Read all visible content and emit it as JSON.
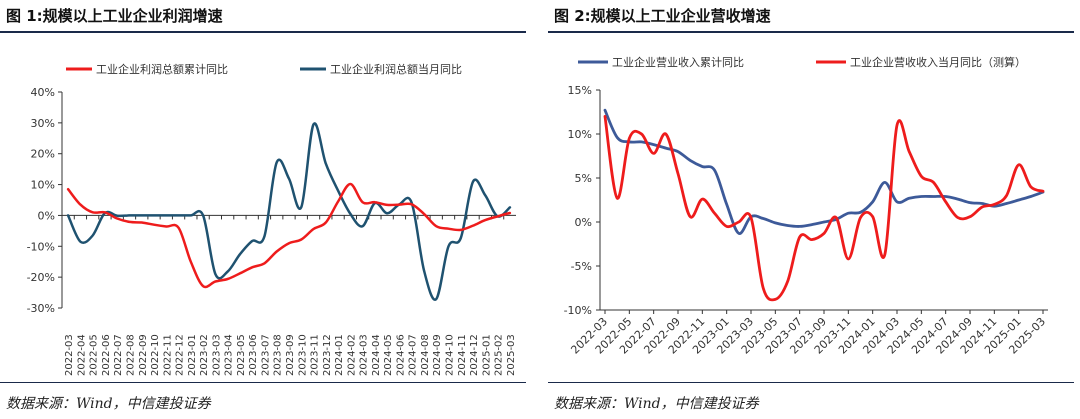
{
  "figures": [
    {
      "title": "图 1:规模以上工业企业利润增速",
      "source": "数据来源：Wind，中信建投证券"
    },
    {
      "title": "图 2:规模以上工业企业营收增速",
      "source": "数据来源：Wind，中信建投证券"
    }
  ],
  "chart_data": [
    {
      "type": "line",
      "title": "规模以上工业企业利润增速",
      "categories": [
        "2022-03",
        "2022-04",
        "2022-05",
        "2022-06",
        "2022-07",
        "2022-08",
        "2022-09",
        "2022-10",
        "2022-11",
        "2022-12",
        "2023-01",
        "2023-02",
        "2023-03",
        "2023-04",
        "2023-05",
        "2023-06",
        "2023-07",
        "2023-08",
        "2023-09",
        "2023-10",
        "2023-11",
        "2023-12",
        "2024-01",
        "2024-02",
        "2024-03",
        "2024-04",
        "2024-05",
        "2024-06",
        "2024-07",
        "2024-08",
        "2024-09",
        "2024-10",
        "2024-11",
        "2024-12",
        "2025-01",
        "2025-02",
        "2025-03"
      ],
      "yticks": [
        -30,
        -20,
        -10,
        0,
        10,
        20,
        30,
        40
      ],
      "ytick_labels": [
        "-30%",
        "-20%",
        "-10%",
        "0%",
        "10%",
        "20%",
        "30%",
        "40%"
      ],
      "ylim": [
        -30,
        40
      ],
      "series": [
        {
          "name": "工业企业利润总额累计同比",
          "color": "#ee1c1c",
          "values": [
            8.5,
            3.5,
            1.0,
            1.0,
            -1.0,
            -2.1,
            -2.3,
            -3.0,
            -3.6,
            -4.0,
            -15,
            -22.9,
            -21.4,
            -20.6,
            -18.8,
            -16.8,
            -15.5,
            -11.7,
            -9.0,
            -7.8,
            -4.4,
            -2.3,
            4.5,
            10.2,
            4.3,
            4.3,
            3.4,
            3.5,
            3.6,
            0.5,
            -3.5,
            -4.3,
            -4.7,
            -3.3,
            -1.5,
            -0.3,
            0.8
          ]
        },
        {
          "name": "工业企业利润总额当月同比",
          "color": "#1f5270",
          "values": [
            0,
            -8.5,
            -6.5,
            0.8,
            -0.1,
            0,
            0,
            0,
            0,
            0,
            0,
            0,
            -19,
            -18.2,
            -12.6,
            -8.3,
            -6.7,
            17.2,
            11.9,
            2.7,
            29.5,
            16.8,
            8,
            0.5,
            -3.5,
            4.0,
            0.7,
            3.6,
            4.1,
            -17.8,
            -27.1,
            -10.0,
            -7.3,
            11.0,
            6.5,
            -0.3,
            2.6
          ]
        }
      ]
    },
    {
      "type": "line",
      "title": "规模以上工业企业营收增速",
      "categories": [
        "2022-03",
        "2022-04",
        "2022-05",
        "2022-06",
        "2022-07",
        "2022-08",
        "2022-09",
        "2022-10",
        "2022-11",
        "2022-12",
        "2023-01",
        "2023-02",
        "2023-03",
        "2023-04",
        "2023-05",
        "2023-06",
        "2023-07",
        "2023-08",
        "2023-09",
        "2023-10",
        "2023-11",
        "2023-12",
        "2024-01",
        "2024-02",
        "2024-03",
        "2024-04",
        "2024-05",
        "2024-06",
        "2024-07",
        "2024-08",
        "2024-09",
        "2024-10",
        "2024-11",
        "2024-12",
        "2025-01",
        "2025-02",
        "2025-03"
      ],
      "xtick_labels": [
        "2022-03",
        "2022-05",
        "2022-07",
        "2022-09",
        "2022-11",
        "2023-01",
        "2023-03",
        "2023-05",
        "2023-07",
        "2023-09",
        "2023-11",
        "2024-01",
        "2024-03",
        "2024-05",
        "2024-07",
        "2024-09",
        "2024-11",
        "2025-01",
        "2025-03"
      ],
      "yticks": [
        -10,
        -5,
        0,
        5,
        10,
        15
      ],
      "ytick_labels": [
        "-10%",
        "-5%",
        "0%",
        "5%",
        "10%",
        "15%"
      ],
      "ylim": [
        -10,
        15
      ],
      "series": [
        {
          "name": "工业企业营业收入累计同比",
          "color": "#3d5a99",
          "values": [
            12.7,
            9.6,
            9.1,
            9.1,
            8.8,
            8.4,
            8.0,
            7.0,
            6.3,
            5.9,
            2.0,
            -1.3,
            0.6,
            0.4,
            -0.1,
            -0.4,
            -0.5,
            -0.3,
            0,
            0.3,
            1.0,
            1.1,
            2.3,
            4.5,
            2.3,
            2.7,
            2.9,
            2.9,
            2.9,
            2.6,
            2.2,
            2.1,
            1.8,
            2.1,
            2.5,
            2.9,
            3.4
          ]
        },
        {
          "name": "工业企业营收收入当月同比（测算）",
          "color": "#ee1c1c",
          "values": [
            12,
            2.7,
            9.5,
            10,
            7.8,
            10,
            5.5,
            0.6,
            2.6,
            1.0,
            -0.5,
            0,
            0.5,
            -7.5,
            -8.8,
            -6.8,
            -1.7,
            -2.0,
            -1.3,
            0.5,
            -4.2,
            0.5,
            0.6,
            -3.7,
            11,
            8.0,
            5.2,
            4.5,
            2.3,
            0.5,
            0.6,
            1.7,
            2.0,
            3.0,
            6.5,
            4.0,
            3.5
          ]
        }
      ]
    }
  ]
}
